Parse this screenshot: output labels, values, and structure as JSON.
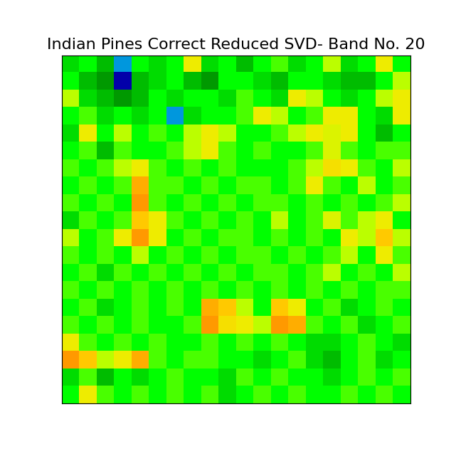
{
  "chart_data": {
    "type": "heatmap",
    "title": "Indian Pines Correct Reduced SVD- Band No. 20",
    "tick_labels": false,
    "color_range": [
      0,
      1
    ],
    "cells": [
      [
        0.55,
        0.6,
        0.5,
        0.3,
        0.6,
        0.55,
        0.6,
        0.7,
        0.55,
        0.6,
        0.5,
        0.6,
        0.62,
        0.55,
        0.6,
        0.65,
        0.55,
        0.6,
        0.7,
        0.6
      ],
      [
        0.6,
        0.5,
        0.45,
        0.15,
        0.5,
        0.55,
        0.6,
        0.5,
        0.45,
        0.6,
        0.6,
        0.55,
        0.5,
        0.6,
        0.6,
        0.55,
        0.5,
        0.5,
        0.6,
        0.65
      ],
      [
        0.65,
        0.55,
        0.5,
        0.45,
        0.5,
        0.6,
        0.55,
        0.6,
        0.6,
        0.55,
        0.62,
        0.6,
        0.55,
        0.7,
        0.65,
        0.6,
        0.55,
        0.6,
        0.65,
        0.7
      ],
      [
        0.6,
        0.62,
        0.55,
        0.6,
        0.55,
        0.6,
        0.3,
        0.55,
        0.6,
        0.6,
        0.62,
        0.7,
        0.65,
        0.6,
        0.62,
        0.7,
        0.7,
        0.6,
        0.55,
        0.7
      ],
      [
        0.55,
        0.7,
        0.6,
        0.65,
        0.6,
        0.62,
        0.6,
        0.65,
        0.7,
        0.65,
        0.6,
        0.6,
        0.62,
        0.65,
        0.7,
        0.68,
        0.7,
        0.6,
        0.5,
        0.6
      ],
      [
        0.6,
        0.62,
        0.5,
        0.62,
        0.6,
        0.6,
        0.62,
        0.65,
        0.7,
        0.62,
        0.6,
        0.62,
        0.6,
        0.6,
        0.62,
        0.68,
        0.62,
        0.6,
        0.62,
        0.62
      ],
      [
        0.62,
        0.6,
        0.62,
        0.65,
        0.7,
        0.62,
        0.6,
        0.62,
        0.6,
        0.62,
        0.6,
        0.6,
        0.6,
        0.62,
        0.65,
        0.72,
        0.7,
        0.62,
        0.6,
        0.65
      ],
      [
        0.6,
        0.62,
        0.6,
        0.62,
        0.78,
        0.62,
        0.62,
        0.6,
        0.62,
        0.6,
        0.62,
        0.62,
        0.6,
        0.62,
        0.7,
        0.62,
        0.6,
        0.65,
        0.6,
        0.62
      ],
      [
        0.62,
        0.6,
        0.62,
        0.6,
        0.8,
        0.62,
        0.6,
        0.62,
        0.6,
        0.62,
        0.6,
        0.62,
        0.62,
        0.6,
        0.62,
        0.6,
        0.62,
        0.6,
        0.62,
        0.65
      ],
      [
        0.55,
        0.62,
        0.6,
        0.62,
        0.75,
        0.7,
        0.62,
        0.6,
        0.62,
        0.6,
        0.62,
        0.6,
        0.65,
        0.6,
        0.62,
        0.68,
        0.62,
        0.65,
        0.7,
        0.6
      ],
      [
        0.65,
        0.6,
        0.62,
        0.7,
        0.8,
        0.7,
        0.6,
        0.62,
        0.6,
        0.62,
        0.62,
        0.6,
        0.62,
        0.6,
        0.62,
        0.6,
        0.7,
        0.65,
        0.75,
        0.65
      ],
      [
        0.62,
        0.6,
        0.62,
        0.6,
        0.65,
        0.6,
        0.62,
        0.6,
        0.62,
        0.6,
        0.62,
        0.62,
        0.6,
        0.62,
        0.6,
        0.62,
        0.65,
        0.6,
        0.7,
        0.62
      ],
      [
        0.6,
        0.62,
        0.55,
        0.62,
        0.6,
        0.62,
        0.6,
        0.62,
        0.6,
        0.62,
        0.6,
        0.62,
        0.62,
        0.6,
        0.62,
        0.65,
        0.6,
        0.62,
        0.6,
        0.65
      ],
      [
        0.62,
        0.6,
        0.62,
        0.6,
        0.62,
        0.6,
        0.62,
        0.6,
        0.62,
        0.6,
        0.62,
        0.6,
        0.62,
        0.6,
        0.62,
        0.6,
        0.62,
        0.6,
        0.62,
        0.62
      ],
      [
        0.6,
        0.62,
        0.55,
        0.6,
        0.62,
        0.6,
        0.62,
        0.6,
        0.78,
        0.75,
        0.65,
        0.6,
        0.75,
        0.7,
        0.6,
        0.62,
        0.55,
        0.6,
        0.62,
        0.6
      ],
      [
        0.62,
        0.6,
        0.62,
        0.6,
        0.62,
        0.6,
        0.6,
        0.62,
        0.8,
        0.72,
        0.7,
        0.65,
        0.8,
        0.78,
        0.62,
        0.6,
        0.62,
        0.55,
        0.6,
        0.62
      ],
      [
        0.7,
        0.62,
        0.6,
        0.62,
        0.6,
        0.62,
        0.6,
        0.6,
        0.62,
        0.6,
        0.62,
        0.6,
        0.62,
        0.6,
        0.55,
        0.55,
        0.6,
        0.62,
        0.6,
        0.55
      ],
      [
        0.8,
        0.75,
        0.65,
        0.7,
        0.78,
        0.62,
        0.6,
        0.62,
        0.62,
        0.6,
        0.6,
        0.55,
        0.6,
        0.62,
        0.55,
        0.5,
        0.6,
        0.62,
        0.55,
        0.6
      ],
      [
        0.55,
        0.62,
        0.5,
        0.6,
        0.55,
        0.6,
        0.62,
        0.6,
        0.6,
        0.55,
        0.62,
        0.6,
        0.62,
        0.6,
        0.6,
        0.55,
        0.6,
        0.62,
        0.6,
        0.62
      ],
      [
        0.6,
        0.7,
        0.62,
        0.6,
        0.62,
        0.6,
        0.62,
        0.6,
        0.62,
        0.55,
        0.6,
        0.62,
        0.6,
        0.62,
        0.6,
        0.6,
        0.62,
        0.6,
        0.62,
        0.6
      ]
    ]
  }
}
